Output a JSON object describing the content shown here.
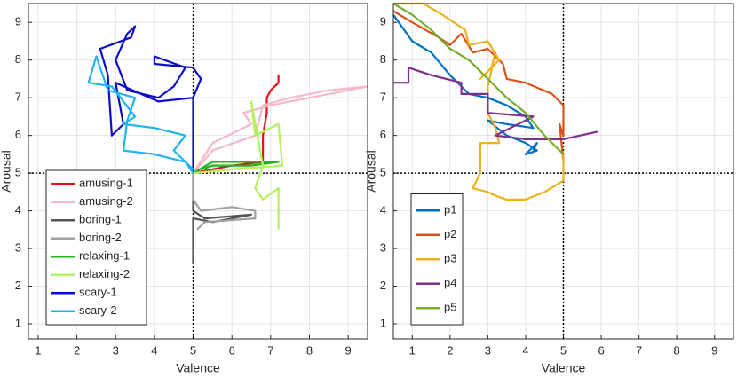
{
  "chart_data": [
    {
      "type": "line",
      "xlabel": "Valence",
      "ylabel": "Arousal",
      "xlim": [
        0.75,
        9.5
      ],
      "ylim": [
        0.6,
        9.5
      ],
      "xticks": [
        1,
        2,
        3,
        4,
        5,
        6,
        7,
        8,
        9
      ],
      "yticks": [
        1,
        2,
        3,
        4,
        5,
        6,
        7,
        8,
        9
      ],
      "grid": true,
      "vline": 5,
      "hline": 5,
      "legend": "southwest",
      "series": [
        {
          "name": "amusing-1",
          "color": "#e8101a",
          "x": [
            5,
            6.0,
            6.8,
            6.8,
            6.9,
            6.9,
            7.0,
            7.2,
            7.2
          ],
          "values": [
            5.0,
            5.2,
            5.3,
            6.0,
            6.6,
            7.0,
            7.2,
            7.4,
            7.6
          ]
        },
        {
          "name": "amusing-2",
          "color": "#f7b8c8",
          "x": [
            5,
            5.5,
            6.5,
            6.3,
            7.0,
            8.0,
            9.0,
            9.5,
            8.5,
            7.5,
            6.8,
            6.6,
            5.5,
            5
          ],
          "values": [
            5.0,
            5.8,
            6.3,
            6.6,
            6.8,
            7.0,
            7.2,
            7.3,
            7.2,
            7.0,
            6.8,
            6.0,
            5.6,
            5.0
          ]
        },
        {
          "name": "boring-1",
          "color": "#555555",
          "x": [
            5,
            5,
            5.3,
            6.5,
            5.5,
            5.0,
            5
          ],
          "values": [
            5.0,
            4.0,
            3.8,
            3.9,
            3.7,
            3.8,
            2.6
          ]
        },
        {
          "name": "boring-2",
          "color": "#a0a0a0",
          "x": [
            5,
            5,
            5.2,
            6,
            6.6,
            6.6,
            5.3,
            5.1
          ],
          "values": [
            5.0,
            4.3,
            4.0,
            4.1,
            4.0,
            3.8,
            3.7,
            3.5
          ]
        },
        {
          "name": "relaxing-1",
          "color": "#1fb51a",
          "x": [
            5,
            5.5,
            6.5,
            7.2,
            6.5,
            5.5,
            5.2
          ],
          "values": [
            5.0,
            5.3,
            5.3,
            5.3,
            5.2,
            5.2,
            5.1
          ]
        },
        {
          "name": "relaxing-2",
          "color": "#b3f25a",
          "x": [
            5,
            6,
            7.3,
            7.2,
            6.6,
            6.5,
            6.8,
            6.6,
            6.8,
            7.2,
            7.2
          ],
          "values": [
            5.0,
            5.1,
            5.2,
            6.3,
            6.0,
            6.9,
            5.2,
            4.6,
            4.3,
            4.6,
            3.5
          ]
        },
        {
          "name": "scary-1",
          "color": "#0d0dc8",
          "x": [
            5,
            5,
            5,
            4.1,
            3.0,
            3.2,
            2.9,
            2.8,
            2.6,
            3.4,
            3.5,
            3.3,
            3.0,
            3.3,
            4.1,
            4.5,
            4.8,
            4.0,
            4.0,
            5.0,
            5.2,
            5.0
          ],
          "values": [
            5.0,
            6.3,
            7.0,
            6.9,
            7.4,
            6.3,
            6.0,
            7.6,
            8.3,
            8.6,
            8.9,
            8.7,
            8.0,
            7.2,
            7.0,
            7.3,
            7.8,
            8.1,
            7.9,
            7.8,
            7.5,
            7.0
          ]
        },
        {
          "name": "scary-2",
          "color": "#1eb4f0",
          "x": [
            5,
            4.8,
            4.0,
            3.2,
            3.3,
            3.5,
            2.8,
            2.5,
            2.3,
            2.9,
            3.5,
            3.2,
            4.0,
            4.8,
            4.5,
            5
          ],
          "values": [
            5.0,
            5.3,
            5.5,
            5.6,
            6.4,
            7.0,
            7.2,
            8.1,
            7.4,
            7.3,
            6.5,
            6.3,
            6.2,
            6.0,
            5.6,
            5.1
          ]
        }
      ]
    },
    {
      "type": "line",
      "xlabel": "Valence",
      "ylabel": "Arousal",
      "xlim": [
        0.5,
        9.5
      ],
      "ylim": [
        0.6,
        9.5
      ],
      "xticks": [
        1,
        2,
        3,
        4,
        5,
        6,
        7,
        8,
        9
      ],
      "yticks": [
        1,
        2,
        3,
        4,
        5,
        6,
        7,
        8,
        9
      ],
      "grid": true,
      "vline": 5,
      "hline": 5,
      "legend": "southwest",
      "series": [
        {
          "name": "p1",
          "color": "#0072bd",
          "x": [
            0.5,
            1.0,
            1.5,
            2.0,
            2.5,
            3.0,
            3.5,
            4.0,
            4.2,
            3.5,
            3.0,
            3.5,
            4.0,
            4.3,
            4.0,
            4.3,
            4.2
          ],
          "values": [
            9.2,
            8.5,
            8.2,
            7.6,
            7.1,
            7.0,
            6.8,
            6.5,
            6.2,
            6.3,
            6.4,
            6.0,
            5.8,
            5.6,
            5.5,
            5.8,
            5.6
          ]
        },
        {
          "name": "p2",
          "color": "#d95319",
          "x": [
            0.5,
            1.0,
            1.7,
            2.0,
            2.3,
            2.6,
            3.0,
            3.4,
            3.5,
            4.0,
            4.7,
            5.0,
            5.0,
            4.9,
            5.0
          ],
          "values": [
            9.3,
            9.0,
            8.6,
            8.4,
            8.7,
            8.2,
            8.3,
            7.9,
            7.5,
            7.4,
            7.1,
            6.8,
            6.0,
            6.3,
            5.3
          ]
        },
        {
          "name": "p3",
          "color": "#edb120",
          "x": [
            0.5,
            1.3,
            1.8,
            2.4,
            2.5,
            3.0,
            3.3,
            2.8,
            3.1,
            3.2,
            3.0,
            3.0,
            3.2,
            3.3,
            2.8,
            2.8,
            2.6,
            3.0,
            3.2,
            3.5,
            4.0,
            4.5,
            5.0,
            5.0
          ],
          "values": [
            9.5,
            9.5,
            9.2,
            8.8,
            8.4,
            8.5,
            8.0,
            7.5,
            7.8,
            8.2,
            7.3,
            6.6,
            6.2,
            5.8,
            5.8,
            5.0,
            4.6,
            4.5,
            4.4,
            4.3,
            4.3,
            4.5,
            4.8,
            5.5
          ]
        },
        {
          "name": "p4",
          "color": "#7e2f8e",
          "x": [
            0.5,
            0.9,
            0.9,
            1.5,
            2.3,
            2.3,
            3.0,
            3.0,
            4.2,
            3.2,
            4.0,
            5.0,
            5.9
          ],
          "values": [
            7.4,
            7.4,
            7.8,
            7.6,
            7.4,
            7.1,
            7.1,
            6.6,
            6.5,
            6.0,
            5.9,
            5.9,
            6.1
          ]
        },
        {
          "name": "p5",
          "color": "#77ac30",
          "x": [
            0.5,
            1.0,
            1.5,
            2.0,
            2.5,
            3.0,
            3.5,
            4.0,
            4.5,
            5.0
          ],
          "values": [
            9.5,
            9.2,
            8.8,
            8.3,
            8.0,
            7.5,
            7.0,
            6.6,
            6.0,
            5.5
          ]
        }
      ]
    }
  ]
}
